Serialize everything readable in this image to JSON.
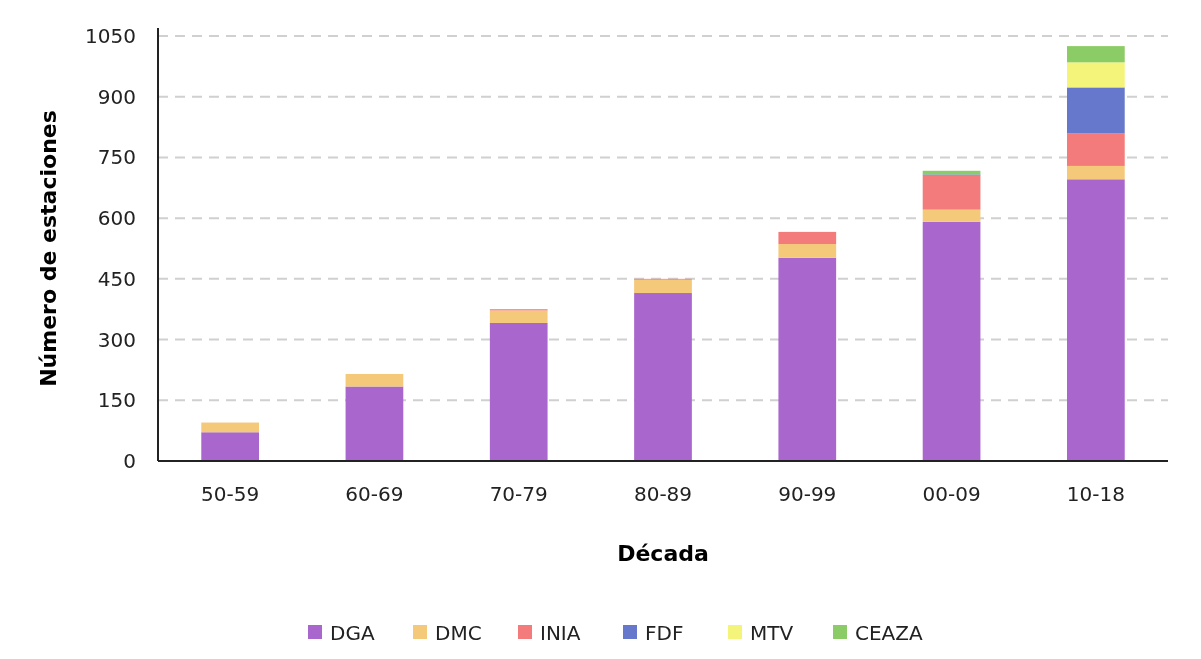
{
  "chart_data": {
    "type": "bar",
    "xlabel": "Década",
    "ylabel": "Número de estaciones",
    "categories": [
      "50-59",
      "60-69",
      "70-79",
      "80-89",
      "90-99",
      "00-09",
      "10-18"
    ],
    "stacked": true,
    "series": [
      {
        "name": "DGA",
        "color": "#a966cc",
        "values": [
          71,
          184,
          341,
          415,
          502,
          591,
          696
        ]
      },
      {
        "name": "DMC",
        "color": "#f4c97a",
        "values": [
          24,
          31,
          31,
          33,
          34,
          30,
          33
        ]
      },
      {
        "name": "INIA",
        "color": "#f47b7b",
        "values": [
          0,
          0,
          3,
          2,
          30,
          84,
          80
        ]
      },
      {
        "name": "FDF",
        "color": "#6678cc",
        "values": [
          0,
          0,
          0,
          0,
          0,
          3,
          114
        ]
      },
      {
        "name": "MTV",
        "color": "#f4f47a",
        "values": [
          0,
          0,
          0,
          0,
          0,
          0,
          62
        ]
      },
      {
        "name": "CEAZA",
        "color": "#8ccc66",
        "values": [
          0,
          0,
          0,
          0,
          0,
          9,
          40
        ]
      }
    ],
    "ylim": [
      0,
      1050
    ],
    "yticks": [
      0,
      150,
      300,
      450,
      600,
      750,
      900,
      1050
    ],
    "grid": "y",
    "legend": "bottom"
  }
}
